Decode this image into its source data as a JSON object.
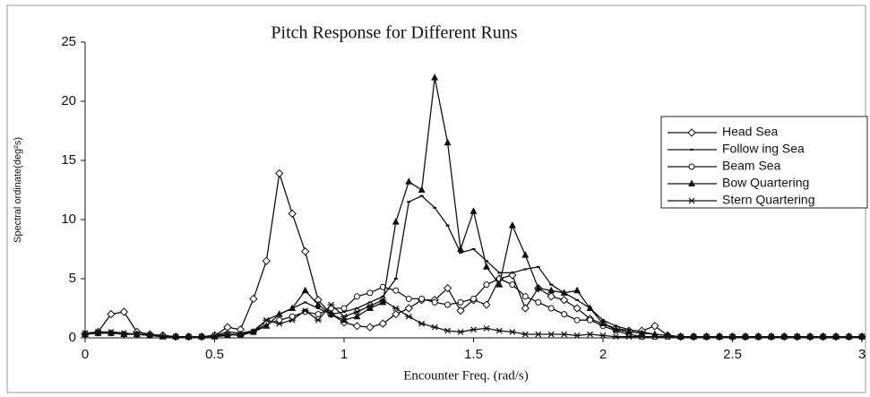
{
  "chart_data": {
    "type": "line",
    "title": "Pitch Response for Different Runs",
    "x_label": "Encounter Freq. (rad/s)",
    "y_label": "Spectral ordinate(deg²s)",
    "x": [
      0,
      0.05,
      0.1,
      0.15,
      0.2,
      0.25,
      0.3,
      0.35,
      0.4,
      0.45,
      0.5,
      0.55,
      0.6,
      0.65,
      0.7,
      0.75,
      0.8,
      0.85,
      0.9,
      0.95,
      1.0,
      1.05,
      1.1,
      1.15,
      1.2,
      1.25,
      1.3,
      1.35,
      1.4,
      1.45,
      1.5,
      1.55,
      1.6,
      1.65,
      1.7,
      1.75,
      1.8,
      1.85,
      1.9,
      1.95,
      2.0,
      2.05,
      2.1,
      2.15,
      2.2,
      2.25,
      2.3,
      2.35,
      2.4,
      2.45,
      2.5,
      2.55,
      2.6,
      2.65,
      2.7,
      2.75,
      2.8,
      2.85,
      2.9,
      2.95,
      3.0
    ],
    "series": [
      {
        "name": "Head Sea",
        "color": "#111111",
        "marker": "diamond",
        "values": [
          0.3,
          0.5,
          2.0,
          2.2,
          0.5,
          0.3,
          0.2,
          0.1,
          0.1,
          0.1,
          0.2,
          0.9,
          0.7,
          3.3,
          6.5,
          13.9,
          10.5,
          7.3,
          3.2,
          2.0,
          1.3,
          1.0,
          0.9,
          1.2,
          2.0,
          2.5,
          3.2,
          3.2,
          4.2,
          2.3,
          3.2,
          2.8,
          5.0,
          5.3,
          2.5,
          4.2,
          3.5,
          3.2,
          2.5,
          1.6,
          1.2,
          0.8,
          0.6,
          0.6,
          1.0,
          0.2,
          0.1,
          0.1,
          0.1,
          0.1,
          0.1,
          0.1,
          0.1,
          0.1,
          0.1,
          0.1,
          0.1,
          0.1,
          0.1,
          0.1,
          0.1
        ]
      },
      {
        "name": "Follow ing Sea",
        "color": "#111111",
        "marker": "dash",
        "values": [
          0.3,
          0.4,
          0.5,
          0.4,
          0.3,
          0.3,
          0.2,
          0.1,
          0.1,
          0.1,
          0.2,
          0.5,
          0.4,
          0.6,
          1.5,
          2.0,
          2.5,
          3.0,
          2.5,
          2.0,
          2.2,
          2.5,
          3.0,
          3.5,
          5.0,
          11.5,
          12.0,
          11.0,
          9.5,
          7.2,
          7.5,
          6.5,
          5.5,
          5.5,
          5.8,
          6.0,
          4.5,
          3.8,
          3.2,
          2.5,
          1.5,
          1.0,
          0.7,
          0.5,
          0.3,
          0.2,
          0.1,
          0.1,
          0.1,
          0.1,
          0.1,
          0.1,
          0.1,
          0.1,
          0.1,
          0.1,
          0.1,
          0.1,
          0.1,
          0.1,
          0.1
        ]
      },
      {
        "name": "Beam Sea",
        "color": "#111111",
        "marker": "circle",
        "values": [
          0.3,
          0.4,
          0.4,
          0.3,
          0.3,
          0.2,
          0.2,
          0.1,
          0.1,
          0.1,
          0.2,
          0.3,
          0.3,
          0.5,
          1.2,
          1.5,
          1.8,
          2.2,
          2.0,
          2.5,
          2.5,
          3.5,
          3.8,
          4.3,
          4.0,
          3.3,
          3.3,
          3.0,
          2.8,
          3.0,
          3.3,
          4.5,
          5.0,
          4.5,
          3.5,
          3.0,
          2.5,
          2.0,
          1.5,
          1.5,
          1.0,
          0.6,
          0.3,
          0.1,
          0.1,
          0.1,
          0.1,
          0.1,
          0.1,
          0.1,
          0.1,
          0.1,
          0.1,
          0.1,
          0.1,
          0.1,
          0.1,
          0.1,
          0.1,
          0.1,
          0.1
        ]
      },
      {
        "name": "Bow Quartering",
        "color": "#111111",
        "marker": "triangle",
        "values": [
          0.3,
          0.4,
          0.4,
          0.3,
          0.3,
          0.2,
          0.1,
          0.1,
          0.1,
          0.1,
          0.1,
          0.2,
          0.3,
          0.5,
          1.0,
          2.0,
          2.5,
          4.0,
          2.8,
          2.0,
          1.5,
          1.8,
          2.5,
          3.0,
          9.8,
          13.2,
          12.5,
          22.0,
          16.5,
          7.5,
          10.7,
          6.0,
          4.5,
          9.5,
          7.0,
          4.2,
          4.0,
          3.8,
          4.0,
          2.5,
          1.2,
          0.7,
          0.5,
          0.4,
          0.3,
          0.2,
          0.1,
          0.1,
          0.1,
          0.1,
          0.1,
          0.1,
          0.1,
          0.1,
          0.1,
          0.1,
          0.1,
          0.1,
          0.1,
          0.1,
          0.1
        ]
      },
      {
        "name": "Stern Quartering",
        "color": "#111111",
        "marker": "asterisk",
        "values": [
          0.4,
          0.5,
          0.5,
          0.4,
          0.3,
          0.2,
          0.1,
          0.1,
          0.1,
          0.1,
          0.1,
          0.3,
          0.2,
          0.5,
          1.5,
          1.2,
          1.5,
          2.3,
          1.5,
          2.8,
          1.8,
          2.2,
          2.7,
          3.2,
          2.5,
          1.8,
          1.2,
          0.9,
          0.6,
          0.5,
          0.7,
          0.8,
          0.6,
          0.5,
          0.3,
          0.3,
          0.3,
          0.3,
          0.2,
          0.3,
          0.2,
          0.1,
          0.1,
          0.1,
          0.1,
          0.1,
          0.1,
          0.1,
          0.1,
          0.1,
          0.1,
          0.1,
          0.1,
          0.1,
          0.1,
          0.1,
          0.1,
          0.1,
          0.1,
          0.1,
          0.1
        ]
      }
    ],
    "xlim": [
      0,
      3
    ],
    "xticks": [
      0,
      0.5,
      1,
      1.5,
      2,
      2.5,
      3
    ],
    "ylim": [
      0,
      25
    ],
    "yticks": [
      0,
      5,
      10,
      15,
      20,
      25
    ],
    "grid": false,
    "legend": "upper right"
  }
}
